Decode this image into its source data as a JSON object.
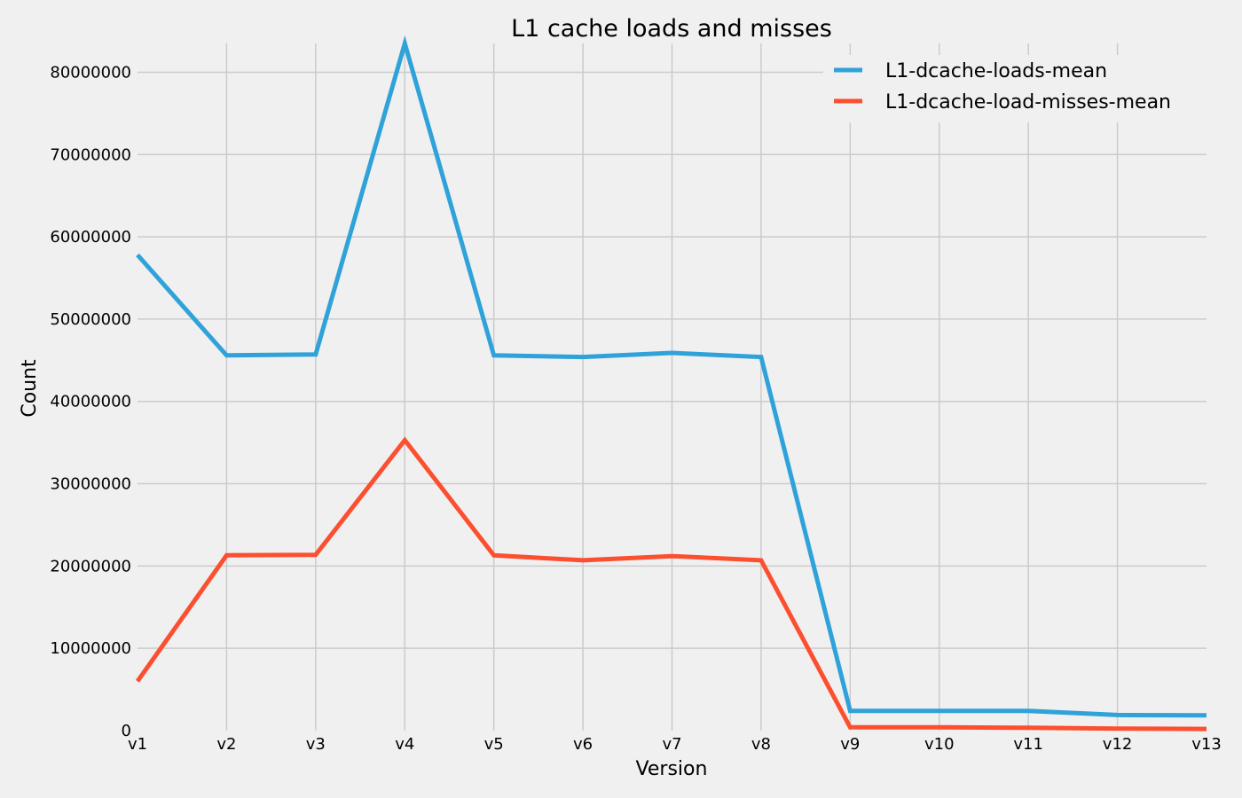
{
  "chart_data": {
    "type": "line",
    "title": "L1 cache loads and misses",
    "xlabel": "Version",
    "ylabel": "Count",
    "categories": [
      "v1",
      "v2",
      "v3",
      "v4",
      "v5",
      "v6",
      "v7",
      "v8",
      "v9",
      "v10",
      "v11",
      "v12",
      "v13"
    ],
    "ylim": [
      0,
      83500000
    ],
    "yticks": [
      0,
      10000000,
      20000000,
      30000000,
      40000000,
      50000000,
      60000000,
      70000000,
      80000000
    ],
    "ytick_labels": [
      "0",
      "10000000",
      "20000000",
      "30000000",
      "40000000",
      "50000000",
      "60000000",
      "70000000",
      "80000000"
    ],
    "grid": true,
    "legend_position": "top-right",
    "series": [
      {
        "name": "L1-dcache-loads-mean",
        "color": "#30a2da",
        "values": [
          57800000,
          45600000,
          45700000,
          83500000,
          45600000,
          45400000,
          45900000,
          45400000,
          2400000,
          2400000,
          2400000,
          1900000,
          1850000
        ]
      },
      {
        "name": "L1-dcache-load-misses-mean",
        "color": "#fc4f30",
        "values": [
          6000000,
          21300000,
          21350000,
          35300000,
          21300000,
          20700000,
          21200000,
          20700000,
          400000,
          400000,
          350000,
          250000,
          200000
        ]
      }
    ]
  }
}
